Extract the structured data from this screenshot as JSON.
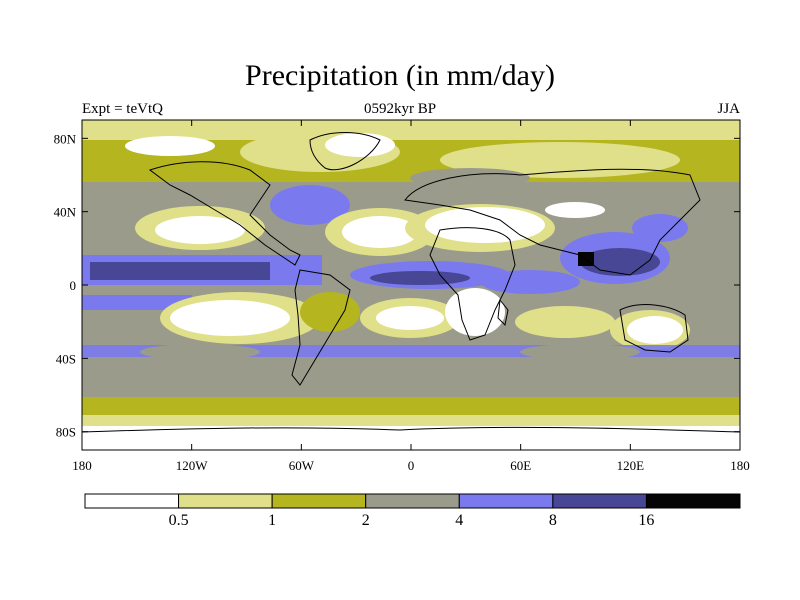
{
  "title": "Precipitation (in mm/day)",
  "subtitle_left": "Expt = teVtQ",
  "subtitle_center": "0592kyr BP",
  "subtitle_right": "JJA",
  "lat_ticks": [
    "80N",
    "40N",
    "0",
    "40S",
    "80S"
  ],
  "lon_ticks": [
    "180",
    "120W",
    "60W",
    "0",
    "60E",
    "120E",
    "180"
  ],
  "colorbar": {
    "colors": [
      "#ffffff",
      "#e0e08a",
      "#b5b520",
      "#9b9b8c",
      "#7a7aee",
      "#474796",
      "#050505"
    ],
    "labels": [
      "0.5",
      "1",
      "2",
      "4",
      "8",
      "16"
    ]
  }
}
